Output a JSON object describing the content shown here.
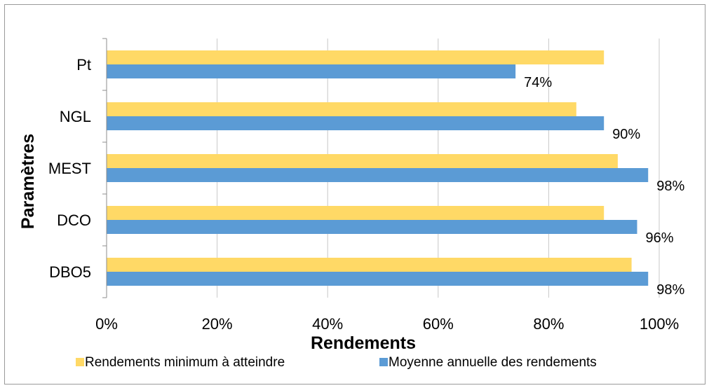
{
  "chart_data": {
    "type": "bar",
    "orientation": "horizontal",
    "categories": [
      "Pt",
      "NGL",
      "MEST",
      "DCO",
      "DBO5"
    ],
    "series": [
      {
        "name": "Rendements minimum à atteindre",
        "values": [
          90,
          85,
          92.5,
          90,
          95
        ],
        "color": "#FFD966"
      },
      {
        "name": "Moyenne annuelle des rendements",
        "values": [
          74,
          90,
          98,
          96,
          98
        ],
        "color": "#5B9BD5",
        "data_labels": [
          "74%",
          "90%",
          "98%",
          "96%",
          "98%"
        ]
      }
    ],
    "xlabel": "Rendements",
    "ylabel": "Paramètres",
    "xlim": [
      0,
      100
    ],
    "x_ticks": [
      "0%",
      "20%",
      "40%",
      "60%",
      "80%",
      "100%"
    ],
    "grid": "vertical",
    "legend_position": "bottom"
  }
}
